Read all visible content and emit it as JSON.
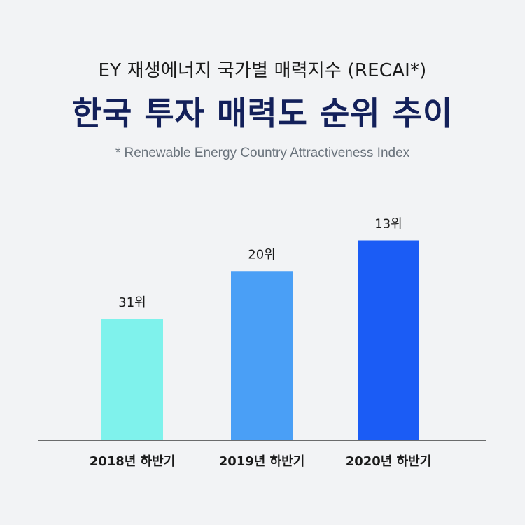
{
  "header": {
    "subtitle": "EY 재생에너지 국가별 매력지수 (RECAI*)",
    "title": "한국 투자 매력도 순위 추이",
    "footnote": "* Renewable Energy Country Attractiveness Index"
  },
  "chart_data": {
    "type": "bar",
    "title": "한국 투자 매력도 순위 추이",
    "categories": [
      "2018년 하반기",
      "2019년 하반기",
      "2020년 하반기"
    ],
    "values": [
      31,
      20,
      13
    ],
    "data_labels": [
      "31위",
      "20위",
      "13위"
    ],
    "bar_colors": [
      "#7ff2ec",
      "#4a9ff6",
      "#1b5cf5"
    ],
    "y_axis": "rank (lower rank number shown as taller bar)",
    "grid": false,
    "legend": "none",
    "xlabel": "",
    "ylabel": ""
  }
}
